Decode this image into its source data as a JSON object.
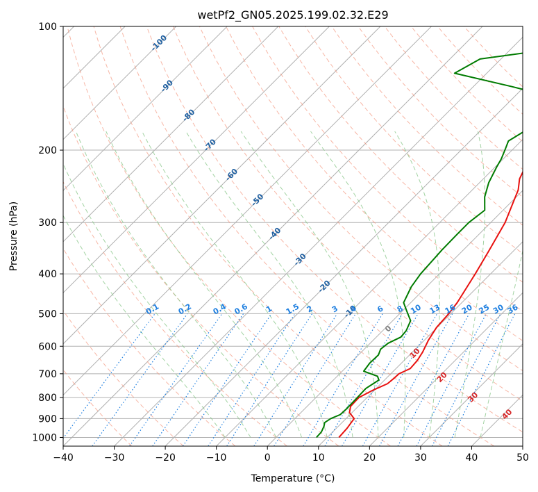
{
  "chart_data": {
    "type": "line",
    "title": "wetPf2_GN05.2025.199.02.32.E29",
    "xlabel": "Temperature (°C)",
    "ylabel": "Pressure (hPa)",
    "xlim": [
      -40,
      50
    ],
    "ylim": [
      1050,
      100
    ],
    "y_scale": "log",
    "grid": true,
    "x_ticks": [
      "−40",
      "−30",
      "−20",
      "−10",
      "0",
      "10",
      "20",
      "30",
      "40",
      "50"
    ],
    "x_tick_values": [
      -40,
      -30,
      -20,
      -10,
      0,
      10,
      20,
      30,
      40,
      50
    ],
    "y_ticks": [
      "100",
      "200",
      "300",
      "400",
      "500",
      "600",
      "700",
      "800",
      "900",
      "1000"
    ],
    "y_tick_values": [
      100,
      200,
      300,
      400,
      500,
      600,
      700,
      800,
      900,
      1000
    ],
    "series": [
      {
        "role": "temperature",
        "color": "#e8110f",
        "points": [
          [
            1000,
            12.3
          ],
          [
            950,
            12.1
          ],
          [
            900,
            11.6
          ],
          [
            870,
            9.5
          ],
          [
            840,
            8.5
          ],
          [
            800,
            8.4
          ],
          [
            770,
            9.6
          ],
          [
            740,
            11.3
          ],
          [
            720,
            11.5
          ],
          [
            700,
            11.6
          ],
          [
            680,
            12.8
          ],
          [
            650,
            12.6
          ],
          [
            620,
            12.0
          ],
          [
            580,
            10.8
          ],
          [
            540,
            9.9
          ],
          [
            500,
            9.6
          ],
          [
            470,
            9.1
          ],
          [
            400,
            7.0
          ],
          [
            350,
            5.1
          ],
          [
            300,
            2.8
          ],
          [
            270,
            0.6
          ],
          [
            250,
            -1.0
          ],
          [
            235,
            -2.9
          ],
          [
            225,
            -3.7
          ],
          [
            220,
            -3.3
          ],
          [
            210,
            0.0
          ],
          [
            200,
            4.8
          ],
          [
            190,
            8.0
          ],
          [
            170,
            11.9
          ],
          [
            150,
            15.5
          ],
          [
            140,
            17.8
          ],
          [
            130,
            20.1
          ],
          [
            120,
            22.2
          ],
          [
            110,
            25.5
          ],
          [
            100,
            28.2
          ]
        ]
      },
      {
        "role": "dewpoint",
        "color": "#007b00",
        "points": [
          [
            1000,
            7.9
          ],
          [
            970,
            7.8
          ],
          [
            940,
            7.2
          ],
          [
            920,
            6.6
          ],
          [
            900,
            7.0
          ],
          [
            880,
            8.1
          ],
          [
            850,
            8.2
          ],
          [
            800,
            8.1
          ],
          [
            760,
            8.0
          ],
          [
            740,
            8.5
          ],
          [
            725,
            8.9
          ],
          [
            710,
            7.9
          ],
          [
            690,
            4.2
          ],
          [
            660,
            3.8
          ],
          [
            630,
            3.9
          ],
          [
            610,
            3.2
          ],
          [
            590,
            3.5
          ],
          [
            570,
            4.8
          ],
          [
            550,
            4.6
          ],
          [
            520,
            3.5
          ],
          [
            490,
            0.6
          ],
          [
            470,
            -1.4
          ],
          [
            430,
            -3.0
          ],
          [
            400,
            -3.7
          ],
          [
            350,
            -4.2
          ],
          [
            320,
            -4.3
          ],
          [
            300,
            -4.3
          ],
          [
            280,
            -3.6
          ],
          [
            260,
            -6.2
          ],
          [
            240,
            -8.2
          ],
          [
            220,
            -9.7
          ],
          [
            210,
            -10.4
          ],
          [
            200,
            -11.4
          ],
          [
            190,
            -12.5
          ],
          [
            170,
            -10.0
          ],
          [
            160,
            -8.3
          ],
          [
            150,
            -10.6
          ],
          [
            140,
            -22.6
          ],
          [
            130,
            -36.3
          ],
          [
            120,
            -34.1
          ],
          [
            115,
            -24.6
          ],
          [
            110,
            -22.1
          ],
          [
            105,
            -21.0
          ],
          [
            100,
            -19.7
          ]
        ]
      }
    ],
    "isotherms_c": [
      -100,
      -90,
      -80,
      -70,
      -60,
      -50,
      -40,
      -30,
      -20,
      -10,
      0,
      10,
      20,
      30,
      40,
      50
    ],
    "dry_adiabats_c": [
      -30,
      -20,
      -10,
      0,
      10,
      20,
      30,
      40,
      50,
      60,
      70,
      80,
      90,
      100,
      110,
      120,
      130,
      140,
      150,
      160,
      170
    ],
    "moist_adiabats_c": [
      -10,
      -5,
      0,
      5,
      10,
      15,
      20,
      25,
      30,
      35,
      40
    ],
    "mixing_ratio_g_per_kg": [
      0.1,
      0.2,
      0.4,
      0.6,
      1,
      1.5,
      2,
      3,
      4,
      6,
      8,
      10,
      13,
      16,
      20,
      25,
      30,
      36
    ],
    "upper_isotherm_labels": [
      "-100",
      "-90",
      "-80",
      "-70",
      "-60",
      "-50",
      "-40",
      "-30",
      "-20",
      "-10"
    ],
    "mixing_ratio_labels": [
      "0.1",
      "0.2",
      "0.4",
      "0.6",
      "1",
      "1.5",
      "2",
      "3",
      "4",
      "6",
      "8",
      "10",
      "13",
      "16",
      "20",
      "25",
      "30",
      "36"
    ],
    "lower_isotherm_labels": [
      "0",
      "10",
      "20",
      "30",
      "40"
    ],
    "colors": {
      "isotherm_label_upper": "#1f5fa0",
      "isotherm_label_zero": "#808080",
      "isotherm_label_lower": "#d62728",
      "mixing_ratio": "#1e7fe0",
      "dry_adiabat": "#f3977f",
      "moist_adiabat": "#8cc88c",
      "grid": "#b0b0b0"
    }
  }
}
